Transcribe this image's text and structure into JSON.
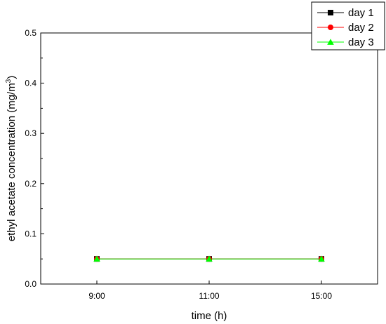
{
  "chart_data": {
    "type": "line",
    "categories": [
      "9:00",
      "11:00",
      "15:00"
    ],
    "xlabel": "time (h)",
    "ylabel": "ethyl acetate concentration (mg/m",
    "ylabel_superscript": "3",
    "ylabel_suffix": ")",
    "ylim": [
      0.0,
      0.5
    ],
    "yticks": [
      "0.0",
      "0.1",
      "0.2",
      "0.3",
      "0.4",
      "0.5"
    ],
    "grid": false,
    "legend_position": "top-right",
    "series": [
      {
        "name": "day 1",
        "values": [
          0.05,
          0.05,
          0.05
        ],
        "color": "#000000",
        "marker": "square"
      },
      {
        "name": "day 2",
        "values": [
          0.05,
          0.05,
          0.05
        ],
        "color": "#ff0000",
        "marker": "circle"
      },
      {
        "name": "day 3",
        "values": [
          0.05,
          0.05,
          0.05
        ],
        "color": "#00ff00",
        "marker": "triangle"
      }
    ]
  }
}
